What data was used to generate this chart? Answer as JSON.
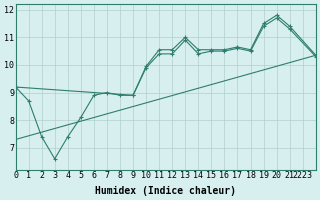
{
  "xlabel": "Humidex (Indice chaleur)",
  "bg_color": "#d8eff0",
  "line_color": "#2e7d6e",
  "grid_color": "#b0cece",
  "xlim": [
    0,
    23
  ],
  "ylim": [
    6.2,
    12.2
  ],
  "line1_x": [
    0,
    1,
    2,
    3,
    4,
    5,
    6,
    7,
    8,
    9,
    10,
    11,
    12,
    13,
    14,
    15,
    16,
    17,
    18,
    19,
    20,
    21,
    23
  ],
  "line1_y": [
    9.2,
    8.7,
    7.4,
    6.6,
    7.4,
    8.1,
    8.9,
    9.0,
    8.9,
    8.9,
    9.95,
    10.55,
    10.55,
    11.0,
    10.55,
    10.55,
    10.55,
    10.65,
    10.55,
    11.5,
    11.8,
    11.4,
    10.35
  ],
  "line2_x": [
    0,
    9,
    10,
    11,
    12,
    13,
    14,
    15,
    16,
    17,
    18,
    19,
    20,
    21,
    23
  ],
  "line2_y": [
    9.2,
    8.9,
    9.9,
    10.4,
    10.4,
    10.9,
    10.4,
    10.5,
    10.5,
    10.6,
    10.5,
    11.4,
    11.7,
    11.3,
    10.3
  ],
  "line3_x": [
    0,
    23
  ],
  "line3_y": [
    7.3,
    10.35
  ],
  "xticks": [
    0,
    1,
    2,
    3,
    4,
    5,
    6,
    7,
    8,
    9,
    10,
    11,
    12,
    13,
    14,
    15,
    16,
    17,
    18,
    19,
    20,
    21,
    22,
    23
  ],
  "xtick_labels": [
    "0",
    "1",
    "2",
    "3",
    "4",
    "5",
    "6",
    "7",
    "8",
    "9",
    "10",
    "11",
    "12",
    "13",
    "14",
    "15",
    "16",
    "17",
    "18",
    "19",
    "20",
    "21",
    "2223",
    ""
  ],
  "yticks": [
    7,
    8,
    9,
    10,
    11,
    12
  ],
  "fontsize_label": 7,
  "fontsize_tick": 6
}
